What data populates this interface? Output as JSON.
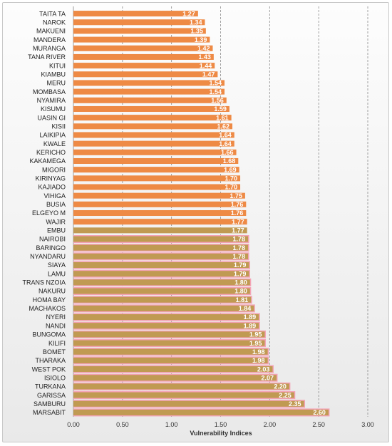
{
  "chart_data": {
    "type": "bar",
    "orientation": "horizontal",
    "title": "",
    "xlabel": "Vulnerability Indices",
    "ylabel": "",
    "xlim": [
      0,
      3
    ],
    "xticks": [
      "0.00",
      "0.50",
      "1.00",
      "1.50",
      "2.00",
      "2.50",
      "3.00"
    ],
    "grid": "vertical dashed",
    "legend": "none",
    "colors": {
      "orange": "#ee8a45",
      "olive": "#c09a52",
      "highlight": "#f4a3b6",
      "grid": "#8a8a8a"
    },
    "categories": [
      "TAITA TA",
      "NAROK",
      "MAKUENI",
      "MANDERA",
      "MURANGA",
      "TANA RIVER",
      "KITUI",
      "KIAMBU",
      "MERU",
      "MOMBASA",
      "NYAMIRA",
      "KISUMU",
      "UASIN GI",
      "KISII",
      "LAIKIPIA",
      "KWALE",
      "KERICHO",
      "KAKAMEGA",
      "MIGORI",
      "KIRINYAG",
      "KAJIADO",
      "VIHIGA",
      "BUSIA",
      "ELGEYO M",
      "WAJIR",
      "EMBU",
      "NAIROBI",
      "BARINGO",
      "NYANDARU",
      "SIAYA",
      "LAMU",
      "TRANS NZOIA",
      "NAKURU",
      "HOMA BAY",
      "MACHAKOS",
      "NYERI",
      "NANDI",
      "BUNGOMA",
      "KILIFI",
      "BOMET",
      "THARAKA",
      "WEST POK",
      "ISIOLO",
      "TURKANA",
      "GARISSA",
      "SAMBURU",
      "MARSABIT"
    ],
    "values": [
      1.27,
      1.34,
      1.35,
      1.39,
      1.42,
      1.43,
      1.44,
      1.47,
      1.54,
      1.54,
      1.56,
      1.59,
      1.61,
      1.62,
      1.64,
      1.64,
      1.66,
      1.68,
      1.69,
      1.7,
      1.7,
      1.75,
      1.76,
      1.76,
      1.77,
      1.77,
      1.78,
      1.78,
      1.78,
      1.79,
      1.79,
      1.8,
      1.8,
      1.81,
      1.84,
      1.89,
      1.89,
      1.95,
      1.95,
      1.98,
      1.98,
      2.03,
      2.07,
      2.2,
      2.25,
      2.35,
      2.6
    ],
    "value_labels": [
      "1.27",
      "1.34",
      "1.35",
      "1.39",
      "1.42",
      "1.43",
      "1.44",
      "1.47",
      "1.54",
      "1.54",
      "1.56",
      "1.59",
      "1.61",
      "1.62",
      "1.64",
      "1.64",
      "1.66",
      "1.68",
      "1.69",
      "1.70",
      "1.70",
      "1.75",
      "1.76",
      "1.76",
      "1.77",
      "1.77",
      "1.78",
      "1.78",
      "1.78",
      "1.79",
      "1.79",
      "1.80",
      "1.80",
      "1.81",
      "1.84",
      "1.89",
      "1.89",
      "1.95",
      "1.95",
      "1.98",
      "1.98",
      "2.03",
      "2.07",
      "2.20",
      "2.25",
      "2.35",
      "2.60"
    ],
    "bar_colors": [
      "orange",
      "orange",
      "orange",
      "orange",
      "orange",
      "orange",
      "orange",
      "orange",
      "orange",
      "orange",
      "orange",
      "orange",
      "orange",
      "orange",
      "orange",
      "orange",
      "orange",
      "orange",
      "orange",
      "orange",
      "orange",
      "orange",
      "orange",
      "orange",
      "orange",
      "olive",
      "olive",
      "olive",
      "olive",
      "olive",
      "olive",
      "olive",
      "olive",
      "olive",
      "olive",
      "olive",
      "olive",
      "olive",
      "olive",
      "olive",
      "olive",
      "olive",
      "olive",
      "olive",
      "olive",
      "olive",
      "olive"
    ],
    "highlighted": [
      false,
      false,
      false,
      false,
      false,
      false,
      false,
      false,
      false,
      false,
      false,
      false,
      false,
      false,
      false,
      false,
      false,
      false,
      false,
      false,
      false,
      false,
      false,
      false,
      false,
      false,
      true,
      true,
      true,
      true,
      true,
      true,
      true,
      true,
      true,
      true,
      true,
      true,
      true,
      true,
      true,
      true,
      true,
      true,
      true,
      true,
      true
    ]
  }
}
